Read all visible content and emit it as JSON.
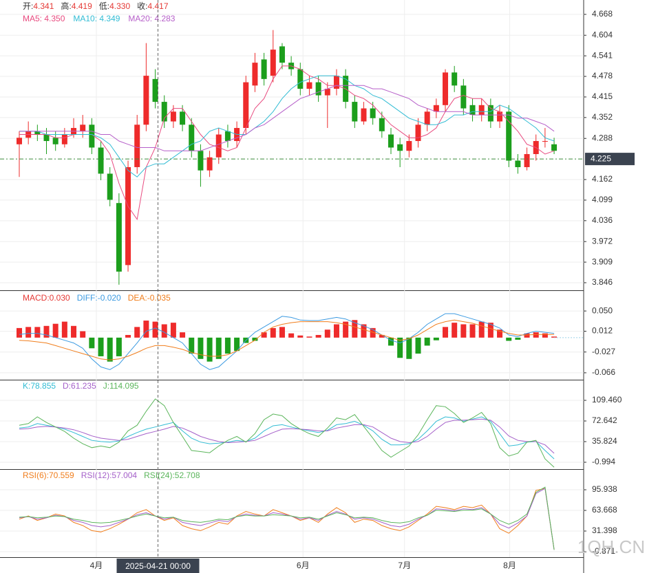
{
  "chart_data": [
    {
      "type": "candlestick",
      "header": [
        {
          "label": "开:",
          "value": "4.341"
        },
        {
          "label": "高:",
          "value": "4.419"
        },
        {
          "label": "低:",
          "value": "4.330"
        },
        {
          "label": "收:",
          "value": "4.417"
        }
      ],
      "header_label_color": "#333333",
      "header_value_color": "#e53935",
      "up_color": "#ee2b2b",
      "down_color": "#1c9e1c",
      "open": [
        4.27,
        4.29,
        4.31,
        4.3,
        4.29,
        4.27,
        4.3,
        4.31,
        4.33,
        4.26,
        4.18,
        4.09,
        3.9,
        4.2,
        4.33,
        4.47,
        4.4,
        4.34,
        4.37,
        4.33,
        4.25,
        4.19,
        4.23,
        4.31,
        4.28,
        4.32,
        4.45,
        4.53,
        4.48,
        4.57,
        4.52,
        4.5,
        4.44,
        4.46,
        4.42,
        4.44,
        4.48,
        4.4,
        4.34,
        4.38,
        4.35,
        4.3,
        4.27,
        4.25,
        4.28,
        4.33,
        4.37,
        4.39,
        4.49,
        4.45,
        4.39,
        4.36,
        4.39,
        4.34,
        4.37,
        4.22,
        4.2,
        4.24,
        4.28,
        4.27
      ],
      "high": [
        4.31,
        4.34,
        4.33,
        4.32,
        4.31,
        4.32,
        4.35,
        4.36,
        4.35,
        4.28,
        4.2,
        4.12,
        4.22,
        4.36,
        4.58,
        4.5,
        4.42,
        4.39,
        4.39,
        4.35,
        4.27,
        4.25,
        4.32,
        4.33,
        4.34,
        4.48,
        4.55,
        4.55,
        4.62,
        4.58,
        4.54,
        4.52,
        4.48,
        4.48,
        4.46,
        4.5,
        4.5,
        4.42,
        4.4,
        4.4,
        4.37,
        4.32,
        4.29,
        4.3,
        4.35,
        4.38,
        4.41,
        4.5,
        4.51,
        4.47,
        4.41,
        4.41,
        4.41,
        4.39,
        4.39,
        4.24,
        4.26,
        4.3,
        4.32,
        4.29
      ],
      "low": [
        4.17,
        4.27,
        4.28,
        4.24,
        4.25,
        4.26,
        4.29,
        4.29,
        4.24,
        4.16,
        4.08,
        3.84,
        3.88,
        4.18,
        4.31,
        4.38,
        4.32,
        4.32,
        4.31,
        4.23,
        4.14,
        4.17,
        4.21,
        4.26,
        4.26,
        4.3,
        4.43,
        4.45,
        4.46,
        4.5,
        4.48,
        4.42,
        4.42,
        4.4,
        4.32,
        4.42,
        4.38,
        4.32,
        4.33,
        4.33,
        4.29,
        4.24,
        4.2,
        4.23,
        4.26,
        4.31,
        4.35,
        4.37,
        4.43,
        4.36,
        4.34,
        4.34,
        4.32,
        4.32,
        4.2,
        4.18,
        4.19,
        4.22,
        4.26,
        4.24
      ],
      "close": [
        4.29,
        4.31,
        4.3,
        4.28,
        4.27,
        4.3,
        4.32,
        4.33,
        4.26,
        4.18,
        4.1,
        3.88,
        4.2,
        4.33,
        4.48,
        4.4,
        4.34,
        4.37,
        4.33,
        4.25,
        4.19,
        4.23,
        4.3,
        4.28,
        4.32,
        4.46,
        4.52,
        4.47,
        4.56,
        4.52,
        4.5,
        4.44,
        4.46,
        4.42,
        4.44,
        4.48,
        4.4,
        4.34,
        4.38,
        4.35,
        4.31,
        4.26,
        4.25,
        4.28,
        4.33,
        4.37,
        4.39,
        4.49,
        4.45,
        4.38,
        4.36,
        4.39,
        4.34,
        4.37,
        4.22,
        4.2,
        4.24,
        4.28,
        4.28,
        4.25
      ],
      "series": [
        {
          "legend": "MA5: 4.350",
          "color": "#e84a7f",
          "values": [
            4.3,
            4.3,
            4.3,
            4.3,
            4.29,
            4.29,
            4.3,
            4.3,
            4.3,
            4.28,
            4.24,
            4.15,
            4.08,
            4.04,
            4.2,
            4.26,
            4.35,
            4.38,
            4.38,
            4.34,
            4.3,
            4.27,
            4.26,
            4.25,
            4.26,
            4.32,
            4.38,
            4.41,
            4.47,
            4.51,
            4.51,
            4.5,
            4.48,
            4.47,
            4.45,
            4.45,
            4.44,
            4.42,
            4.41,
            4.39,
            4.36,
            4.33,
            4.31,
            4.29,
            4.29,
            4.3,
            4.32,
            4.37,
            4.41,
            4.42,
            4.41,
            4.41,
            4.38,
            4.37,
            4.34,
            4.31,
            4.27,
            4.26,
            4.24,
            4.25
          ]
        },
        {
          "legend": "MA10: 4.349",
          "color": "#31bcd4",
          "values": [
            4.31,
            4.31,
            4.31,
            4.3,
            4.3,
            4.3,
            4.3,
            4.3,
            4.3,
            4.29,
            4.27,
            4.23,
            4.19,
            4.17,
            4.2,
            4.21,
            4.21,
            4.23,
            4.25,
            4.27,
            4.28,
            4.31,
            4.32,
            4.31,
            4.3,
            4.3,
            4.32,
            4.34,
            4.37,
            4.41,
            4.44,
            4.46,
            4.47,
            4.48,
            4.48,
            4.48,
            4.47,
            4.45,
            4.44,
            4.42,
            4.41,
            4.39,
            4.37,
            4.35,
            4.34,
            4.33,
            4.33,
            4.34,
            4.36,
            4.36,
            4.37,
            4.37,
            4.37,
            4.39,
            4.38,
            4.36,
            4.34,
            4.32,
            4.29,
            4.28
          ]
        },
        {
          "legend": "MA20: 4.283",
          "color": "#b65fc9",
          "values": [
            4.31,
            4.31,
            4.31,
            4.31,
            4.31,
            4.31,
            4.31,
            4.31,
            4.31,
            4.3,
            4.3,
            4.28,
            4.27,
            4.26,
            4.26,
            4.26,
            4.25,
            4.25,
            4.25,
            4.25,
            4.25,
            4.26,
            4.27,
            4.28,
            4.29,
            4.3,
            4.32,
            4.33,
            4.35,
            4.37,
            4.39,
            4.41,
            4.42,
            4.43,
            4.44,
            4.45,
            4.45,
            4.45,
            4.45,
            4.44,
            4.44,
            4.43,
            4.42,
            4.41,
            4.39,
            4.38,
            4.37,
            4.37,
            4.37,
            4.37,
            4.36,
            4.36,
            4.36,
            4.36,
            4.36,
            4.35,
            4.35,
            4.34,
            4.33,
            4.31
          ]
        }
      ],
      "ylim": [
        3.827,
        4.712
      ],
      "yticks": [
        4.668,
        4.604,
        4.541,
        4.478,
        4.415,
        4.352,
        4.288,
        4.162,
        4.099,
        4.036,
        3.972,
        3.909,
        3.846
      ],
      "last_price": 4.225,
      "last_price_color": "#3b8a3b",
      "xlim": [
        -2.126,
        62.26
      ]
    },
    {
      "type": "macd",
      "header": [
        {
          "text": "MACD:0.030",
          "color": "#e53935"
        },
        {
          "text": "DIFF:-0.020",
          "color": "#3b9ae1"
        },
        {
          "text": "DEA:-0.035",
          "color": "#f07d1b"
        }
      ],
      "up_color": "#ee2b2b",
      "down_color": "#1c9e1c",
      "histogram": [
        0.018,
        0.02,
        0.02,
        0.022,
        0.026,
        0.03,
        0.022,
        0.012,
        -0.02,
        -0.035,
        -0.045,
        -0.035,
        0.005,
        0.02,
        0.032,
        0.03,
        0.025,
        0.028,
        0.01,
        -0.03,
        -0.04,
        -0.045,
        -0.04,
        -0.03,
        -0.025,
        -0.01,
        -0.006,
        0.01,
        0.018,
        0.02,
        0.008,
        0.004,
        0.002,
        0.005,
        0.015,
        0.025,
        0.03,
        0.033,
        0.025,
        0.018,
        0.005,
        -0.015,
        -0.038,
        -0.04,
        -0.03,
        -0.015,
        -0.005,
        0.02,
        0.028,
        0.025,
        0.025,
        0.03,
        0.028,
        0.015,
        -0.006,
        -0.004,
        0.008,
        0.01,
        0.008,
        0.002
      ],
      "series": [
        {
          "color": "#3b9ae1",
          "values": [
            0.006,
            0.008,
            0.008,
            0.005,
            0,
            -0.005,
            -0.01,
            -0.02,
            -0.04,
            -0.055,
            -0.06,
            -0.05,
            -0.03,
            -0.01,
            0.012,
            0.018,
            0.01,
            0,
            -0.01,
            -0.03,
            -0.05,
            -0.06,
            -0.055,
            -0.04,
            -0.025,
            -0.005,
            0.01,
            0.02,
            0.03,
            0.04,
            0.038,
            0.033,
            0.032,
            0.032,
            0.035,
            0.038,
            0.035,
            0.028,
            0.022,
            0.015,
            0.005,
            -0.005,
            -0.01,
            -0.002,
            0.01,
            0.025,
            0.035,
            0.045,
            0.045,
            0.04,
            0.035,
            0.03,
            0.025,
            0.018,
            0.005,
            0.002,
            0.008,
            0.012,
            0.01,
            0.008
          ]
        },
        {
          "color": "#f07d1b",
          "values": [
            -0.005,
            -0.006,
            -0.008,
            -0.01,
            -0.015,
            -0.02,
            -0.025,
            -0.03,
            -0.035,
            -0.04,
            -0.042,
            -0.04,
            -0.035,
            -0.028,
            -0.02,
            -0.015,
            -0.015,
            -0.018,
            -0.022,
            -0.028,
            -0.032,
            -0.035,
            -0.035,
            -0.032,
            -0.025,
            -0.015,
            -0.005,
            0.01,
            0.02,
            0.025,
            0.028,
            0.03,
            0.03,
            0.03,
            0.03,
            0.028,
            0.025,
            0.02,
            0.015,
            0.01,
            0.005,
            0,
            -0.005,
            -0.002,
            0.005,
            0.015,
            0.025,
            0.03,
            0.033,
            0.03,
            0.027,
            0.022,
            0.017,
            0.012,
            0.008,
            0.005,
            0.005,
            0.006,
            0.006,
            0.006
          ]
        }
      ],
      "ylim": [
        -0.079,
        0.085
      ],
      "yticks": [
        {
          "value": 0.05,
          "label": "0.050"
        },
        0.012,
        -0.027,
        -0.066
      ]
    },
    {
      "type": "line",
      "header": [
        {
          "text": "K:78.855",
          "color": "#31bcd4"
        },
        {
          "text": "D:61.235",
          "color": "#a45fc9"
        },
        {
          "text": "J:114.095",
          "color": "#5ab55a"
        }
      ],
      "series": [
        {
          "color": "#31bcd4",
          "values": [
            60,
            62,
            68,
            65,
            62,
            58,
            52,
            45,
            38,
            36,
            35,
            37,
            45,
            52,
            58,
            62,
            66,
            70,
            55,
            42,
            35,
            32,
            33,
            35,
            38,
            36,
            42,
            55,
            64,
            66,
            62,
            58,
            55,
            52,
            56,
            66,
            68,
            72,
            65,
            55,
            40,
            30,
            30,
            32,
            40,
            55,
            72,
            80,
            78,
            72,
            76,
            80,
            72,
            50,
            28,
            30,
            35,
            36,
            20,
            5
          ]
        },
        {
          "color": "#a45fc9",
          "values": [
            58,
            59,
            62,
            63,
            62,
            60,
            57,
            52,
            46,
            42,
            40,
            38,
            40,
            45,
            50,
            54,
            58,
            63,
            60,
            53,
            45,
            40,
            36,
            34,
            35,
            36,
            38,
            45,
            52,
            58,
            59,
            58,
            57,
            55,
            55,
            60,
            63,
            66,
            66,
            62,
            52,
            42,
            36,
            34,
            36,
            45,
            58,
            70,
            74,
            74,
            75,
            76,
            74,
            62,
            46,
            38,
            36,
            36,
            30,
            15
          ]
        },
        {
          "color": "#5ab55a",
          "values": [
            65,
            68,
            80,
            70,
            62,
            54,
            42,
            32,
            25,
            28,
            25,
            35,
            55,
            65,
            90,
            112,
            100,
            70,
            45,
            20,
            18,
            16,
            28,
            38,
            45,
            35,
            50,
            75,
            85,
            82,
            68,
            58,
            50,
            45,
            60,
            78,
            75,
            84,
            63,
            42,
            20,
            8,
            18,
            28,
            48,
            75,
            100,
            98,
            86,
            70,
            78,
            88,
            68,
            25,
            10,
            15,
            35,
            38,
            5,
            -10
          ]
        }
      ],
      "ylim": [
        -13.27,
        145.05
      ],
      "yticks": [
        {
          "value": 109.46,
          "label": "109.460"
        },
        72.642,
        35.824,
        -0.994
      ]
    },
    {
      "type": "line",
      "header": [
        {
          "text": "RSI(6):70.559",
          "color": "#f07d1b"
        },
        {
          "text": "RSI(12):57.004",
          "color": "#a45fc9"
        },
        {
          "text": "RSI(24):52.708",
          "color": "#5ab55a"
        }
      ],
      "series": [
        {
          "color": "#f07d1b",
          "values": [
            50,
            55,
            48,
            52,
            58,
            55,
            45,
            40,
            32,
            30,
            35,
            42,
            50,
            60,
            65,
            55,
            48,
            52,
            40,
            35,
            32,
            38,
            45,
            42,
            55,
            62,
            58,
            55,
            65,
            60,
            55,
            48,
            52,
            45,
            58,
            68,
            60,
            45,
            50,
            48,
            40,
            35,
            32,
            38,
            48,
            58,
            70,
            68,
            65,
            70,
            68,
            72,
            58,
            35,
            28,
            40,
            55,
            95,
            98,
            2
          ]
        },
        {
          "color": "#a45fc9",
          "values": [
            52,
            54,
            50,
            52,
            56,
            54,
            48,
            45,
            40,
            38,
            40,
            45,
            50,
            57,
            60,
            55,
            50,
            53,
            45,
            42,
            40,
            44,
            48,
            46,
            54,
            58,
            56,
            55,
            60,
            58,
            55,
            50,
            52,
            48,
            56,
            62,
            58,
            50,
            52,
            50,
            45,
            40,
            38,
            42,
            50,
            56,
            66,
            65,
            63,
            66,
            65,
            68,
            58,
            42,
            36,
            44,
            55,
            90,
            98,
            2
          ]
        },
        {
          "color": "#5ab55a",
          "values": [
            53,
            54,
            52,
            53,
            55,
            54,
            50,
            48,
            45,
            44,
            45,
            48,
            51,
            55,
            58,
            55,
            52,
            53,
            48,
            46,
            45,
            47,
            50,
            49,
            54,
            56,
            55,
            55,
            57,
            56,
            55,
            52,
            53,
            50,
            55,
            60,
            57,
            52,
            53,
            52,
            48,
            45,
            44,
            46,
            52,
            56,
            64,
            63,
            62,
            64,
            64,
            66,
            58,
            48,
            42,
            48,
            58,
            92,
            100,
            2
          ]
        }
      ],
      "ylim": [
        -9.48,
        127.13
      ],
      "yticks": [
        95.938,
        63.668,
        31.398,
        -0.871
      ],
      "xticks": [
        {
          "value": 8.5,
          "label": "4月"
        },
        {
          "value": 31.3,
          "label": "6月"
        },
        {
          "value": 42.5,
          "label": "7月"
        },
        {
          "value": 54.1,
          "label": "8月"
        }
      ],
      "crosshair": {
        "value": 15.3,
        "label": "2025-04-21 00:00"
      }
    }
  ],
  "watermark": "1QH.CN"
}
